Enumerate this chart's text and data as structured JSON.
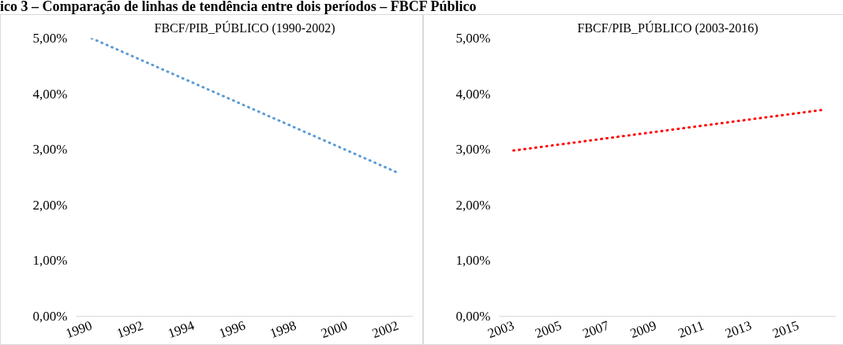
{
  "chart_data": [
    {
      "type": "line",
      "title": "FBCF/PIB_PÚBLICO (1990-2002)",
      "annotations": [
        "ico 3 – Comparação de linhas de tendência entre dois períodos – FBCF Público"
      ],
      "x": [
        1990,
        2002
      ],
      "series": [
        {
          "color": "#5b9bd5",
          "values": [
            5.0,
            2.58
          ]
        }
      ],
      "xlim": [
        1989.4,
        2002.6
      ],
      "xticks": [
        1990,
        1992,
        1994,
        1996,
        1998,
        2000,
        2002
      ],
      "ylim": [
        0,
        5
      ],
      "yticks": [
        {
          "value": 0,
          "label": "0,00%"
        },
        {
          "value": 1,
          "label": "1,00%"
        },
        {
          "value": 2,
          "label": "2,00%"
        },
        {
          "value": 3,
          "label": "3,00%"
        },
        {
          "value": 4,
          "label": "4,00%"
        },
        {
          "value": 5,
          "label": "5,00%"
        }
      ],
      "grid": false,
      "marker": "none",
      "line_style": "dotted"
    },
    {
      "type": "line",
      "title": "FBCF/PIB_PÚBLICO (2003-2016)",
      "x": [
        2003,
        2016
      ],
      "series": [
        {
          "color": "#ff0000",
          "values": [
            2.98,
            3.71
          ]
        }
      ],
      "xlim": [
        2002.4,
        2016.6
      ],
      "xticks": [
        2003,
        2005,
        2007,
        2009,
        2011,
        2013,
        2015
      ],
      "ylim": [
        0,
        5
      ],
      "yticks": [
        {
          "value": 0,
          "label": "0,00%"
        },
        {
          "value": 1,
          "label": "1,00%"
        },
        {
          "value": 2,
          "label": "2,00%"
        },
        {
          "value": 3,
          "label": "3,00%"
        },
        {
          "value": 4,
          "label": "4,00%"
        },
        {
          "value": 5,
          "label": "5,00%"
        }
      ],
      "grid": false,
      "marker": "none",
      "line_style": "dotted"
    }
  ]
}
